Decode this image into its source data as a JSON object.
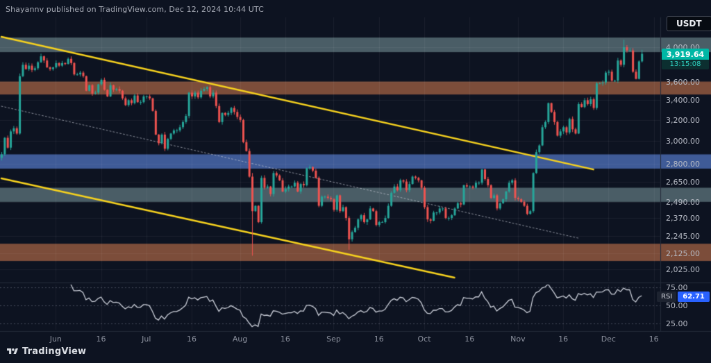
{
  "header": {
    "attribution": "Shayannv published on TradingView.com, Dec 12, 2024 10:44 UTC",
    "currency_badge": "USDT"
  },
  "price_label": {
    "text": "3,919.64",
    "countdown": "13:15:08",
    "price": 3919.64,
    "bg": "#00b7a5"
  },
  "rsi_badge": {
    "label": "RSI",
    "value": "62.71",
    "bg": "#2962ff"
  },
  "footer": {
    "brand": "TradingView"
  },
  "chart_data": {
    "type": "candlestick",
    "scale": "log",
    "start_date": "2024-05-14",
    "end_date": "2024-12-12",
    "price_range": [
      1966,
      4383
    ],
    "grid": "faint",
    "up_color": "#26a69a",
    "down_color": "#ef5350",
    "first_open": 2850,
    "closes": [
      2880,
      3030,
      2940,
      3090,
      3120,
      3070,
      3660,
      3790,
      3740,
      3780,
      3730,
      3750,
      3820,
      3890,
      3840,
      3760,
      3740,
      3760,
      3810,
      3780,
      3810,
      3800,
      3860,
      3810,
      3680,
      3680,
      3700,
      3660,
      3500,
      3560,
      3470,
      3480,
      3570,
      3620,
      3510,
      3440,
      3560,
      3510,
      3520,
      3500,
      3420,
      3350,
      3400,
      3370,
      3450,
      3380,
      3380,
      3440,
      3440,
      3420,
      3290,
      3060,
      2980,
      3060,
      2930,
      3020,
      3070,
      3100,
      3100,
      3130,
      3180,
      3240,
      3480,
      3440,
      3480,
      3430,
      3500,
      3520,
      3540,
      3440,
      3480,
      3340,
      3180,
      3270,
      3250,
      3270,
      3320,
      3280,
      3230,
      3200,
      2990,
      2910,
      2690,
      2420,
      2460,
      2340,
      2680,
      2600,
      2610,
      2550,
      2720,
      2700,
      2660,
      2570,
      2590,
      2610,
      2610,
      2640,
      2570,
      2630,
      2620,
      2760,
      2770,
      2740,
      2680,
      2460,
      2530,
      2530,
      2520,
      2510,
      2430,
      2540,
      2420,
      2450,
      2370,
      2220,
      2270,
      2300,
      2360,
      2390,
      2340,
      2360,
      2440,
      2420,
      2320,
      2340,
      2340,
      2370,
      2460,
      2560,
      2610,
      2580,
      2660,
      2650,
      2580,
      2630,
      2690,
      2680,
      2660,
      2600,
      2450,
      2360,
      2350,
      2410,
      2410,
      2440,
      2440,
      2370,
      2370,
      2390,
      2440,
      2480,
      2470,
      2620,
      2610,
      2610,
      2600,
      2640,
      2640,
      2750,
      2670,
      2620,
      2520,
      2540,
      2440,
      2480,
      2510,
      2570,
      2640,
      2660,
      2520,
      2510,
      2490,
      2460,
      2400,
      2420,
      2720,
      2900,
      2960,
      3130,
      3180,
      3370,
      3280,
      3180,
      3050,
      3090,
      3130,
      3080,
      3210,
      3110,
      3070,
      3360,
      3330,
      3400,
      3360,
      3410,
      3320,
      3580,
      3580,
      3590,
      3700,
      3710,
      3610,
      3610,
      3840,
      3790,
      4000,
      3960,
      3960,
      3710,
      3630,
      3830,
      3920
    ],
    "wick_overrides": {
      "83": {
        "low": 2111,
        "high": 2720
      },
      "115": {
        "low": 2150
      },
      "206": {
        "high": 4093
      },
      "212": {
        "high": 3968
      }
    },
    "price_ticks": [
      {
        "label": "4,000.00",
        "price": 4000
      },
      {
        "label": "3,600.00",
        "price": 3600
      },
      {
        "label": "3,400.00",
        "price": 3400
      },
      {
        "label": "3,200.00",
        "price": 3200
      },
      {
        "label": "3,000.00",
        "price": 3000
      },
      {
        "label": "2,800.00",
        "price": 2800
      },
      {
        "label": "2,650.00",
        "price": 2650
      },
      {
        "label": "2,490.00",
        "price": 2490
      },
      {
        "label": "2,370.00",
        "price": 2370
      },
      {
        "label": "2,245.00",
        "price": 2245
      },
      {
        "label": "2,125.00",
        "price": 2125
      },
      {
        "label": "2,025.00",
        "price": 2025
      }
    ],
    "time_ticks": [
      {
        "label": "Jun",
        "day": 18
      },
      {
        "label": "16",
        "day": 33
      },
      {
        "label": "Jul",
        "day": 48
      },
      {
        "label": "16",
        "day": 63
      },
      {
        "label": "Aug",
        "day": 79
      },
      {
        "label": "16",
        "day": 94
      },
      {
        "label": "Sep",
        "day": 110
      },
      {
        "label": "16",
        "day": 125
      },
      {
        "label": "Oct",
        "day": 140
      },
      {
        "label": "16",
        "day": 155
      },
      {
        "label": "Nov",
        "day": 171
      },
      {
        "label": "16",
        "day": 186
      },
      {
        "label": "Dec",
        "day": 201
      },
      {
        "label": "16",
        "day": 216
      }
    ],
    "zones": [
      {
        "name": "resistance-zone-4000",
        "from": 3940,
        "to": 4120,
        "color": "rgba(115,144,148,0.60)"
      },
      {
        "name": "resistance-zone-3500",
        "from": 3460,
        "to": 3600,
        "color": "rgba(173,102,70,0.70)"
      },
      {
        "name": "pivot-zone-2800",
        "from": 2757,
        "to": 2880,
        "color": "rgba(95,135,225,0.62)"
      },
      {
        "name": "support-zone-2500",
        "from": 2490,
        "to": 2600,
        "color": "rgba(115,144,148,0.60)"
      },
      {
        "name": "support-zone-2100",
        "from": 2077,
        "to": 2190,
        "color": "rgba(173,102,70,0.70)"
      }
    ],
    "trendlines": [
      {
        "name": "descending-channel-upper",
        "day1": 0,
        "price1": 4130,
        "day2": 196,
        "price2": 2750,
        "color": "#f7d21e",
        "width": 2.5,
        "dash": null
      },
      {
        "name": "descending-channel-lower",
        "day1": 0,
        "price1": 2676,
        "day2": 150,
        "price2": 1974,
        "color": "#f7d21e",
        "width": 2.5,
        "dash": null
      },
      {
        "name": "dotted-midline",
        "day1": 0,
        "price1": 3338,
        "day2": 191,
        "price2": 2228,
        "color": "rgba(205,208,218,0.65)",
        "width": 1,
        "dash": [
          2,
          3
        ]
      }
    ],
    "rsi": {
      "period": 14,
      "current": 62.71,
      "line_color": "#ccd0da",
      "levels": [
        {
          "label": "75.00",
          "value": 75
        },
        {
          "label": "50.00",
          "value": 50
        },
        {
          "label": "25.00",
          "value": 25
        }
      ]
    }
  }
}
